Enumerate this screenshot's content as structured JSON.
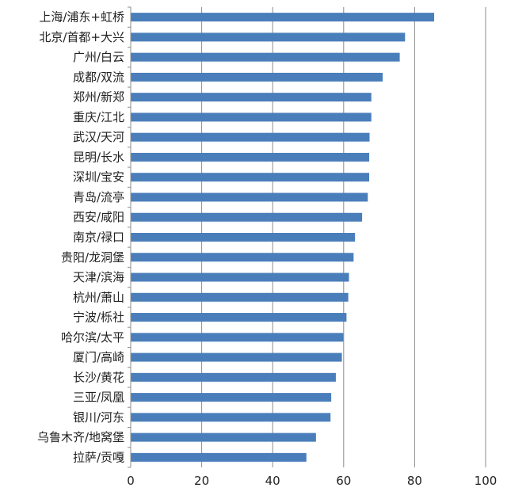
{
  "chart_data": {
    "type": "bar",
    "orientation": "horizontal",
    "title": "",
    "xlabel": "",
    "ylabel": "",
    "xlim": [
      0,
      100
    ],
    "xticks": [
      "0",
      "20",
      "40",
      "60",
      "80",
      "100"
    ],
    "grid": "vertical",
    "legend": "none",
    "bar_color": "#4a7ebb",
    "categories": [
      "上海/浦东+虹桥",
      "北京/首都+大兴",
      "广州/白云",
      "成都/双流",
      "郑州/新郑",
      "重庆/江北",
      "武汉/天河",
      "昆明/长水",
      "深圳/宝安",
      "青岛/流亭",
      "西安/咸阳",
      "南京/禄口",
      "贵阳/龙洞堡",
      "天津/滨海",
      "杭州/萧山",
      "宁波/栎社",
      "哈尔滨/太平",
      "厦门/高崎",
      "长沙/黄花",
      "三亚/凤凰",
      "银川/河东",
      "乌鲁木齐/地窝堡",
      "拉萨/贡嘎"
    ],
    "values": [
      85.5,
      77.3,
      75.8,
      71.0,
      67.8,
      67.8,
      67.3,
      67.2,
      67.2,
      66.8,
      65.2,
      63.2,
      62.8,
      61.5,
      61.3,
      60.8,
      59.9,
      59.5,
      57.8,
      56.5,
      56.3,
      52.2,
      49.5
    ]
  }
}
